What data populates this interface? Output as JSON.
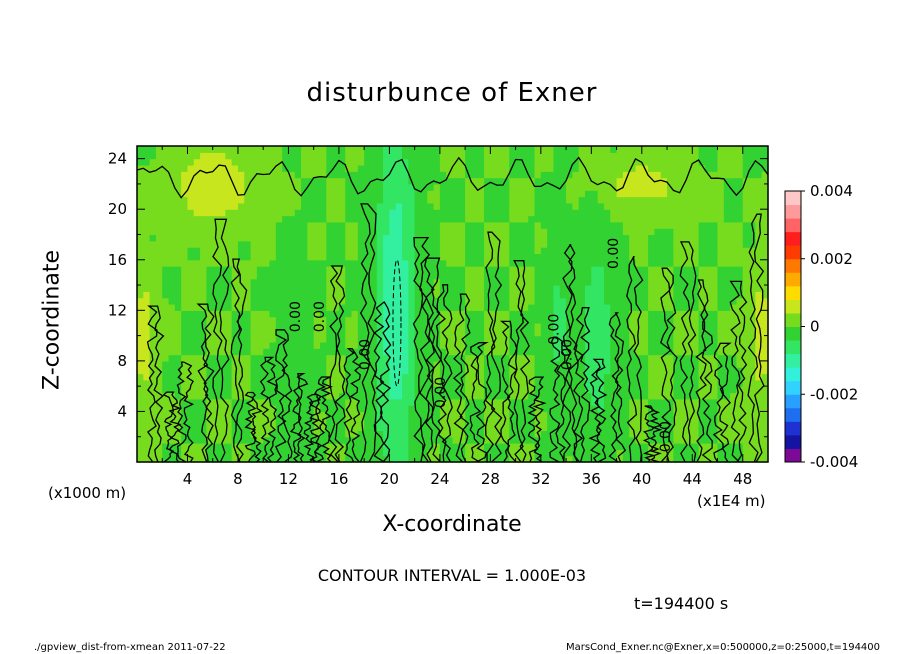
{
  "chart_data": {
    "type": "heatmap",
    "title": "disturbunce of Exner",
    "xlabel": "X-coordinate",
    "ylabel": "Z-coordinate",
    "x_unit": "(x1E4 m)",
    "y_unit": "(x1000 m)",
    "xlim": [
      0,
      50
    ],
    "ylim": [
      0,
      25
    ],
    "x_ticks": [
      4,
      8,
      12,
      16,
      20,
      24,
      28,
      32,
      36,
      40,
      44,
      48
    ],
    "y_ticks": [
      4,
      8,
      12,
      16,
      20,
      24
    ],
    "colorbar": {
      "range": [
        -0.004,
        0.004
      ],
      "tick_labels": [
        "0.004",
        "0.002",
        "0",
        "-0.002",
        "-0.004"
      ],
      "tick_values": [
        0.004,
        0.002,
        0,
        -0.002,
        -0.004
      ],
      "colors": [
        "#7d0a96",
        "#1414a0",
        "#1e32d2",
        "#1e6ef0",
        "#28a0ff",
        "#32d2ff",
        "#32f0dc",
        "#32f0a0",
        "#32e664",
        "#32d232",
        "#78dc1e",
        "#c8e61e",
        "#ffdc00",
        "#ffaa00",
        "#ff7800",
        "#ff3c00",
        "#ff1e1e",
        "#ff6464",
        "#ff9a9a",
        "#ffc8c8"
      ]
    },
    "contour_labels": [
      {
        "text": "0.00",
        "x": 12.6,
        "z": 11.5
      },
      {
        "text": "0.00",
        "x": 14.5,
        "z": 11.5
      },
      {
        "text": "0.00",
        "x": 18.1,
        "z": 8.5
      },
      {
        "text": "0.00",
        "x": 24.1,
        "z": 5.5
      },
      {
        "text": "0.00",
        "x": 33.1,
        "z": 10.5
      },
      {
        "text": "0.00",
        "x": 34.1,
        "z": 8.5
      },
      {
        "text": "0.00",
        "x": 37.8,
        "z": 16.5
      },
      {
        "text": "0.00",
        "x": 41.9,
        "z": 2.0
      }
    ],
    "field_features": [
      {
        "kind": "negative",
        "x": 20.5,
        "z": 12.5,
        "wx": 1.6,
        "wz": 14,
        "amp": -0.0011
      },
      {
        "kind": "negative",
        "x": 36.5,
        "z": 9.5,
        "wx": 1.2,
        "wz": 8,
        "amp": -0.0007
      },
      {
        "kind": "negative",
        "x": 33.5,
        "z": 11,
        "wx": 1.0,
        "wz": 7,
        "amp": -0.0005
      },
      {
        "kind": "negative",
        "x": 12.5,
        "z": 6,
        "wx": 1.0,
        "wz": 8,
        "amp": -0.0004
      },
      {
        "kind": "positive",
        "x": 6,
        "z": 22,
        "wx": 3,
        "wz": 3,
        "amp": 0.0008
      },
      {
        "kind": "positive",
        "x": 40,
        "z": 22,
        "wx": 3,
        "wz": 2,
        "amp": 0.0006
      },
      {
        "kind": "positive",
        "x": 0.5,
        "z": 10,
        "wx": 1,
        "wz": 5,
        "amp": 0.0006
      },
      {
        "kind": "positive",
        "x": 49.5,
        "z": 10,
        "wx": 1,
        "wz": 5,
        "amp": 0.0006
      }
    ]
  },
  "contour_interval_text": "CONTOUR INTERVAL = 1.000E-03",
  "time_text": "t=194400 s",
  "footer_left": "./gpview_dist-from-xmean  2011-07-22",
  "footer_right": "MarsCond_Exner.nc@Exner,x=0:500000,z=0:25000,t=194400"
}
